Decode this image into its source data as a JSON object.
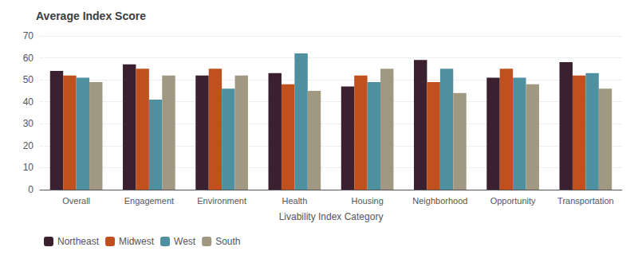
{
  "chart_data": {
    "type": "bar",
    "title": "Average Index Score",
    "xlabel": "Livability Index Category",
    "categories": [
      "Overall",
      "Engagement",
      "Environment",
      "Health",
      "Housing",
      "Neighborhood",
      "Opportunity",
      "Transportation"
    ],
    "series": [
      {
        "name": "Northeast",
        "color": "#3b2030",
        "values": [
          54,
          57,
          52,
          53,
          47,
          59,
          51,
          58
        ]
      },
      {
        "name": "Midwest",
        "color": "#c0511e",
        "values": [
          52,
          55,
          55,
          48,
          52,
          49,
          55,
          52
        ]
      },
      {
        "name": "West",
        "color": "#4e8fa0",
        "values": [
          51,
          41,
          46,
          62,
          49,
          55,
          51,
          53
        ]
      },
      {
        "name": "South",
        "color": "#a09880",
        "values": [
          49,
          52,
          52,
          45,
          55,
          44,
          48,
          46
        ]
      }
    ],
    "ylim": [
      0,
      70
    ],
    "yticks": [
      0,
      10,
      20,
      30,
      40,
      50,
      60,
      70
    ],
    "grid": true,
    "legend": "lower left"
  }
}
